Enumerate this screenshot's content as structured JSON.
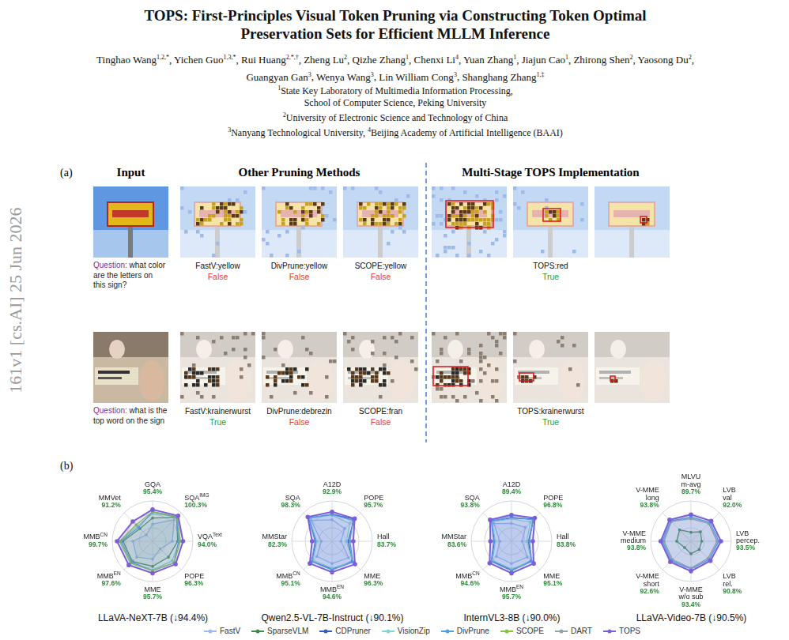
{
  "sidebar": "161v1 [cs.AI] 25 Jun 2026",
  "header": {
    "title": "TOPS: First-Principles Visual Token Pruning via Constructing Token Optimal Preservation Sets for Efficient MLLM Inference",
    "authors": [
      {
        "name": "Tinghao Wang",
        "aff": "1,2,*"
      },
      {
        "name": "Yichen Guo",
        "aff": "1,3,*"
      },
      {
        "name": "Rui Huang",
        "aff": "2,*,†"
      },
      {
        "name": "Zheng Lu",
        "aff": "2"
      },
      {
        "name": "Qizhe Zhang",
        "aff": "1"
      },
      {
        "name": "Chenxi Li",
        "aff": "4"
      },
      {
        "name": "Yuan Zhang",
        "aff": "1"
      },
      {
        "name": "Jiajun Cao",
        "aff": "1"
      },
      {
        "name": "Zhirong Shen",
        "aff": "2"
      },
      {
        "name": "Yaosong Du",
        "aff": "2"
      },
      {
        "name": "Guangyan Gan",
        "aff": "3"
      },
      {
        "name": "Wenya Wang",
        "aff": "3"
      },
      {
        "name": "Lin William Cong",
        "aff": "3"
      },
      {
        "name": "Shanghang Zhang",
        "aff": "1,‡"
      }
    ],
    "affiliations": [
      [
        {
          "sup": "1",
          "text": "State Key Laboratory of Multimedia Information Processing,"
        }
      ],
      [
        {
          "text": "School of Computer Science, Peking University"
        }
      ],
      [
        {
          "sup": "2",
          "text": "University of Electronic Science and Technology of China"
        }
      ],
      [
        {
          "sup": "3",
          "text": "Nanyang Technological University, "
        },
        {
          "sup": "4",
          "text": "Beijing Academy of Artificial Intelligence (BAAI)"
        }
      ]
    ]
  },
  "panel_a": {
    "label": "(a)",
    "headers": [
      "Input",
      "Other Pruning Methods",
      "Multi-Stage TOPS Implementation"
    ],
    "question_prefix": "Question:",
    "rows": [
      {
        "question": "what color are the letters on this sign?",
        "results": [
          {
            "caption": "FastV:yellow",
            "verdict": "False",
            "correct": false
          },
          {
            "caption": "DivPrune:yellow",
            "verdict": "False",
            "correct": false
          },
          {
            "caption": "SCOPE:yellow",
            "verdict": "False",
            "correct": false
          }
        ],
        "tops": {
          "caption": "TOPS:red",
          "verdict": "True",
          "correct": true
        }
      },
      {
        "question": "what is the top word on the sign",
        "results": [
          {
            "caption": "FastV:krainerwurst",
            "verdict": "True",
            "correct": true
          },
          {
            "caption": "DivPrune:debrezin",
            "verdict": "False",
            "correct": false
          },
          {
            "caption": "SCOPE:fran",
            "verdict": "False",
            "correct": false
          }
        ],
        "tops": {
          "caption": "TOPS:krainerwurst",
          "verdict": "True",
          "correct": true
        }
      }
    ]
  },
  "panel_b": {
    "label": "(b)",
    "legend": "bottom",
    "legend_order": [
      "FastV",
      "SparseVLM",
      "CDPruner",
      "VisionZip",
      "DivPrune",
      "SCOPE",
      "DART",
      "TOPS"
    ]
  },
  "chart_data": [
    {
      "type": "radar",
      "title": "LLaVA-NeXT-7B (↓94.4%)",
      "categories": [
        {
          "lines": [
            "GQA"
          ]
        },
        {
          "lines": [
            "SQA"
          ],
          "sup": "IMG"
        },
        {
          "lines": [
            "VQA"
          ],
          "sup": "Text"
        },
        {
          "lines": [
            "POPE"
          ]
        },
        {
          "lines": [
            "MME"
          ]
        },
        {
          "lines": [
            "MMB"
          ],
          "sup": "EN"
        },
        {
          "lines": [
            "MMB"
          ],
          "sup": "CN"
        },
        {
          "lines": [
            "MMVet"
          ]
        }
      ],
      "rlim": [
        60,
        105
      ],
      "rticks": [
        60,
        75,
        90,
        105
      ],
      "grid": true,
      "tick_labels": false,
      "legend": false,
      "series": [
        {
          "name": "FastV",
          "color": "#9cbcf0",
          "values": [
            79,
            94,
            82,
            72,
            80,
            85,
            82,
            70
          ]
        },
        {
          "name": "SparseVLM",
          "color": "#3f8a4a",
          "values": [
            86,
            98,
            88,
            85,
            88,
            92,
            93,
            80
          ]
        },
        {
          "name": "VisionZip",
          "color": "#7ed9d0",
          "values": [
            91,
            99,
            90,
            91,
            92,
            94,
            96,
            84
          ]
        },
        {
          "name": "DivPrune",
          "color": "#4f9fe6",
          "values": [
            93,
            98,
            89,
            94,
            93,
            93,
            95,
            82
          ]
        },
        {
          "name": "SCOPE",
          "color": "#86c43f",
          "values": [
            93,
            99,
            91,
            94,
            93,
            95,
            97,
            86
          ]
        },
        {
          "name": "TOPS",
          "color": "#7b5fd8",
          "values": [
            95.4,
            100.3,
            94.0,
            96.3,
            95.7,
            97.6,
            99.7,
            91.2
          ],
          "value_labels": [
            "95.4%",
            "100.3%",
            "94.0%",
            "96.3%",
            "95.7%",
            "97.6%",
            "99.7%",
            "91.2%"
          ]
        }
      ]
    },
    {
      "type": "radar",
      "title": "Qwen2.5-VL-7B-Instruct (↓90.1%)",
      "categories": [
        {
          "lines": [
            "A12D"
          ]
        },
        {
          "lines": [
            "POPE"
          ]
        },
        {
          "lines": [
            "Hall"
          ]
        },
        {
          "lines": [
            "MME"
          ]
        },
        {
          "lines": [
            "MMB"
          ],
          "sup": "EN"
        },
        {
          "lines": [
            "MMB"
          ],
          "sup": "CN"
        },
        {
          "lines": [
            "MMStar"
          ]
        },
        {
          "lines": [
            "SQA"
          ]
        }
      ],
      "rlim": [
        60,
        105
      ],
      "rticks": [
        60,
        75,
        90,
        105
      ],
      "grid": true,
      "tick_labels": false,
      "legend": false,
      "series": [
        {
          "name": "FastV",
          "color": "#9cbcf0",
          "values": [
            84,
            80,
            70,
            86,
            85,
            84,
            72,
            93
          ]
        },
        {
          "name": "CDPruner",
          "color": "#2f5fc4",
          "values": [
            90,
            95,
            78,
            92,
            91,
            92,
            78,
            96
          ]
        },
        {
          "name": "VisionZip",
          "color": "#7ed9d0",
          "values": [
            89,
            88,
            76,
            93,
            90,
            90,
            77,
            96
          ]
        },
        {
          "name": "DivPrune",
          "color": "#4f9fe6",
          "values": [
            90,
            93,
            80,
            93,
            92,
            92,
            79,
            97
          ]
        },
        {
          "name": "TOPS",
          "color": "#7b5fd8",
          "values": [
            92.9,
            95.7,
            83.7,
            96.3,
            94.6,
            95.1,
            82.3,
            98.3
          ],
          "value_labels": [
            "92.9%",
            "95.7%",
            "83.7%",
            "96.3%",
            "94.6%",
            "95.1%",
            "82.3%",
            "98.3%"
          ]
        }
      ]
    },
    {
      "type": "radar",
      "title": "InternVL3-8B (↓90.0%)",
      "categories": [
        {
          "lines": [
            "A12D"
          ]
        },
        {
          "lines": [
            "POPE"
          ]
        },
        {
          "lines": [
            "Hall"
          ]
        },
        {
          "lines": [
            "MME"
          ]
        },
        {
          "lines": [
            "MMB"
          ],
          "sup": "EN"
        },
        {
          "lines": [
            "MMB"
          ],
          "sup": "CN"
        },
        {
          "lines": [
            "MMStar"
          ]
        },
        {
          "lines": [
            "SQA"
          ]
        }
      ],
      "rlim": [
        60,
        105
      ],
      "rticks": [
        60,
        75,
        90,
        105
      ],
      "grid": true,
      "tick_labels": false,
      "legend": false,
      "series": [
        {
          "name": "FastV",
          "color": "#9cbcf0",
          "values": [
            80,
            82,
            72,
            85,
            85,
            84,
            73,
            88
          ]
        },
        {
          "name": "CDPruner",
          "color": "#2f5fc4",
          "values": [
            86,
            95,
            79,
            91,
            92,
            91,
            79,
            91
          ]
        },
        {
          "name": "VisionZip",
          "color": "#7ed9d0",
          "values": [
            85,
            90,
            77,
            92,
            91,
            90,
            78,
            91
          ]
        },
        {
          "name": "DivPrune",
          "color": "#4f9fe6",
          "values": [
            87,
            94,
            80,
            92,
            93,
            92,
            80,
            92
          ]
        },
        {
          "name": "TOPS",
          "color": "#7b5fd8",
          "values": [
            89.4,
            96.8,
            83.8,
            95.1,
            95.7,
            94.6,
            83.6,
            93.8
          ],
          "value_labels": [
            "89.4%",
            "96.8%",
            "83.8%",
            "95.1%",
            "95.7%",
            "94.6%",
            "83.6%",
            "93.8%"
          ]
        }
      ]
    },
    {
      "type": "radar",
      "title": "LLaVA-Video-7B (↓90.5%)",
      "categories": [
        {
          "lines": [
            "MLVU",
            "m-avg"
          ]
        },
        {
          "lines": [
            "LVB",
            "val"
          ]
        },
        {
          "lines": [
            "LVB",
            "percep."
          ]
        },
        {
          "lines": [
            "LVB",
            "rel."
          ]
        },
        {
          "lines": [
            "V-MME",
            "w/o sub"
          ]
        },
        {
          "lines": [
            "V-MME",
            "short"
          ]
        },
        {
          "lines": [
            "V-MME",
            "medium"
          ]
        },
        {
          "lines": [
            "V-MME",
            "long"
          ]
        }
      ],
      "rlim": [
        60,
        105
      ],
      "rticks": [
        60,
        75,
        90,
        105
      ],
      "grid": true,
      "tick_labels": false,
      "legend": false,
      "series": [
        {
          "name": "SparseVLM",
          "color": "#3f8a4a",
          "values": [
            70,
            75,
            72,
            73,
            74,
            70,
            76,
            78
          ]
        },
        {
          "name": "VisionZip",
          "color": "#7ed9d0",
          "values": [
            86,
            89,
            90,
            88,
            91,
            90,
            91,
            92
          ]
        },
        {
          "name": "DivPrune",
          "color": "#4f9fe6",
          "values": [
            87,
            90,
            91,
            89,
            91,
            91,
            92,
            92
          ]
        },
        {
          "name": "DART",
          "color": "#94a3ad",
          "values": [
            85,
            88,
            89,
            87,
            90,
            89,
            90,
            91
          ]
        },
        {
          "name": "TOPS",
          "color": "#7b5fd8",
          "values": [
            89.7,
            92.0,
            93.5,
            90.8,
            93.4,
            92.6,
            93.8,
            93.8
          ],
          "value_labels": [
            "89.7%",
            "92.0%",
            "93.5%",
            "90.8%",
            "93.4%",
            "92.6%",
            "93.8%",
            "93.8%"
          ]
        }
      ]
    }
  ]
}
